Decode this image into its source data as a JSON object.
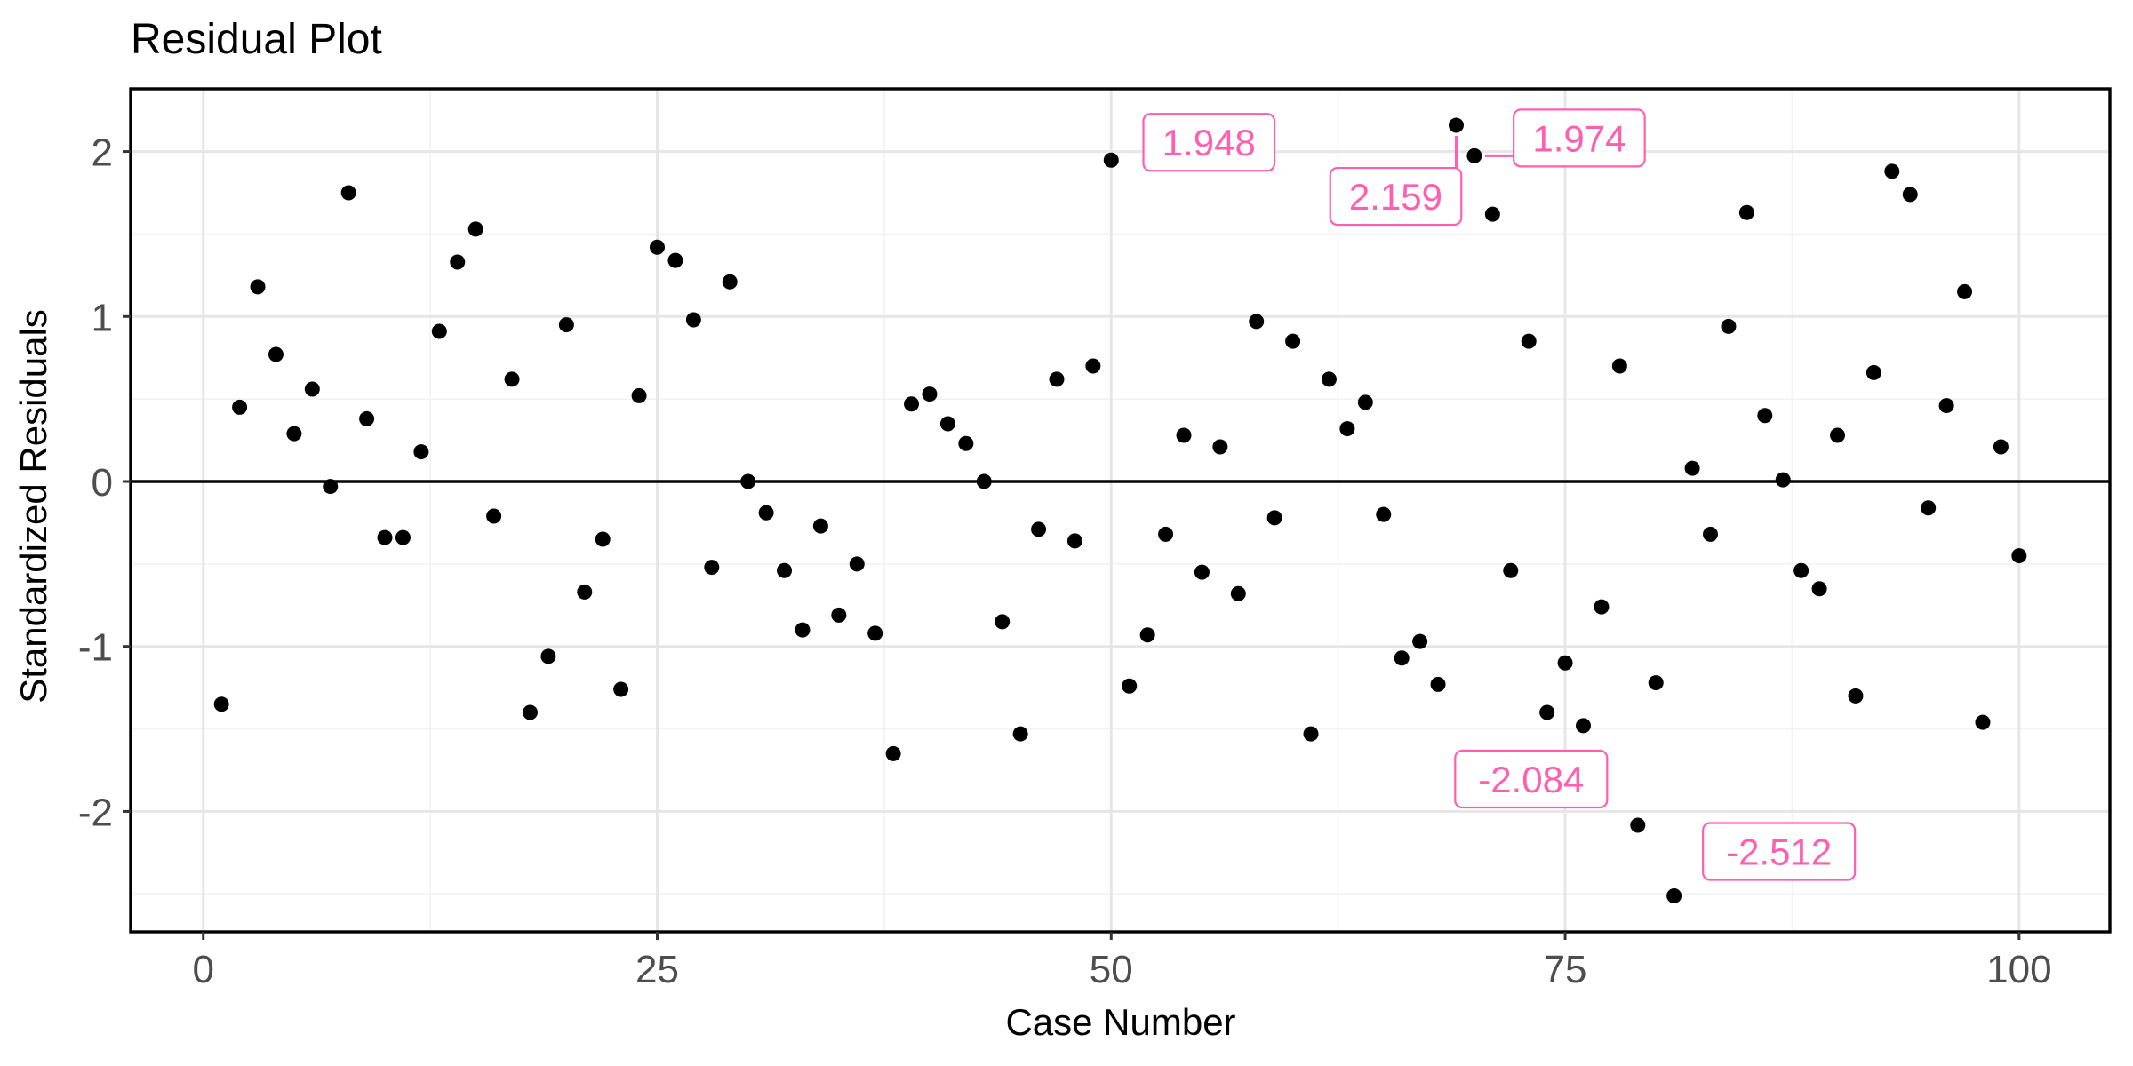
{
  "chart_data": {
    "type": "scatter",
    "title": "Residual Plot",
    "xlabel": "Case Number",
    "ylabel": "Standardized Residuals",
    "xlim": [
      -4,
      105
    ],
    "ylim": [
      -2.73,
      2.38
    ],
    "x_ticks": [
      0,
      25,
      50,
      75,
      100
    ],
    "y_ticks": [
      -2,
      -1,
      0,
      1,
      2
    ],
    "grid": true,
    "hline": 0,
    "x": [
      1,
      2,
      3,
      4,
      5,
      6,
      7,
      8,
      9,
      10,
      11,
      12,
      13,
      14,
      15,
      16,
      17,
      18,
      19,
      20,
      21,
      22,
      23,
      24,
      25,
      26,
      27,
      28,
      29,
      30,
      31,
      32,
      33,
      34,
      35,
      36,
      37,
      38,
      39,
      40,
      41,
      42,
      43,
      44,
      45,
      46,
      47,
      48,
      49,
      50,
      51,
      52,
      53,
      54,
      55,
      56,
      57,
      58,
      59,
      60,
      61,
      62,
      63,
      64,
      65,
      66,
      67,
      68,
      69,
      70,
      71,
      72,
      73,
      74,
      75,
      76,
      77,
      78,
      79,
      80,
      81,
      82,
      83,
      84,
      85,
      86,
      87,
      88,
      89,
      90,
      91,
      92,
      93,
      94,
      95,
      96,
      97,
      98,
      99,
      100
    ],
    "y": [
      -1.35,
      0.45,
      1.18,
      0.77,
      0.29,
      0.56,
      -0.03,
      1.75,
      0.38,
      -0.34,
      -0.34,
      0.18,
      0.91,
      1.33,
      1.53,
      -0.21,
      0.62,
      -1.4,
      -1.06,
      0.95,
      -0.67,
      -0.35,
      -1.26,
      0.52,
      1.42,
      1.34,
      0.98,
      -0.52,
      1.21,
      0.0,
      -0.19,
      -0.54,
      -0.9,
      -0.27,
      -0.81,
      -0.5,
      -0.92,
      -1.65,
      0.47,
      0.53,
      0.35,
      0.23,
      0.0,
      -0.85,
      -1.53,
      -0.29,
      0.62,
      -0.36,
      0.7,
      1.948,
      -1.24,
      -0.93,
      -0.32,
      0.28,
      -0.55,
      0.21,
      -0.68,
      0.97,
      -0.22,
      0.85,
      -1.53,
      0.62,
      0.32,
      0.48,
      -0.2,
      -1.07,
      -0.97,
      -1.23,
      2.159,
      1.974,
      1.62,
      -0.54,
      0.85,
      -1.4,
      -1.1,
      -1.48,
      -0.76,
      0.7,
      -2.084,
      -1.22,
      -2.512,
      0.08,
      -0.32,
      0.94,
      1.63,
      0.4,
      0.01,
      -0.54,
      -0.65,
      0.28,
      -1.3,
      0.66,
      1.88,
      1.74,
      -0.16,
      0.46,
      1.15,
      -1.46,
      0.21,
      -0.45
    ],
    "annotations": [
      {
        "x": 50,
        "y": 1.948,
        "text": "1.948"
      },
      {
        "x": 69,
        "y": 2.159,
        "text": "2.159"
      },
      {
        "x": 70,
        "y": 1.974,
        "text": "1.974"
      },
      {
        "x": 79,
        "y": -2.084,
        "text": "-2.084"
      },
      {
        "x": 81,
        "y": -2.512,
        "text": "-2.512"
      }
    ],
    "colors": {
      "points": "#000000",
      "annotation": "#ff5fae"
    }
  }
}
